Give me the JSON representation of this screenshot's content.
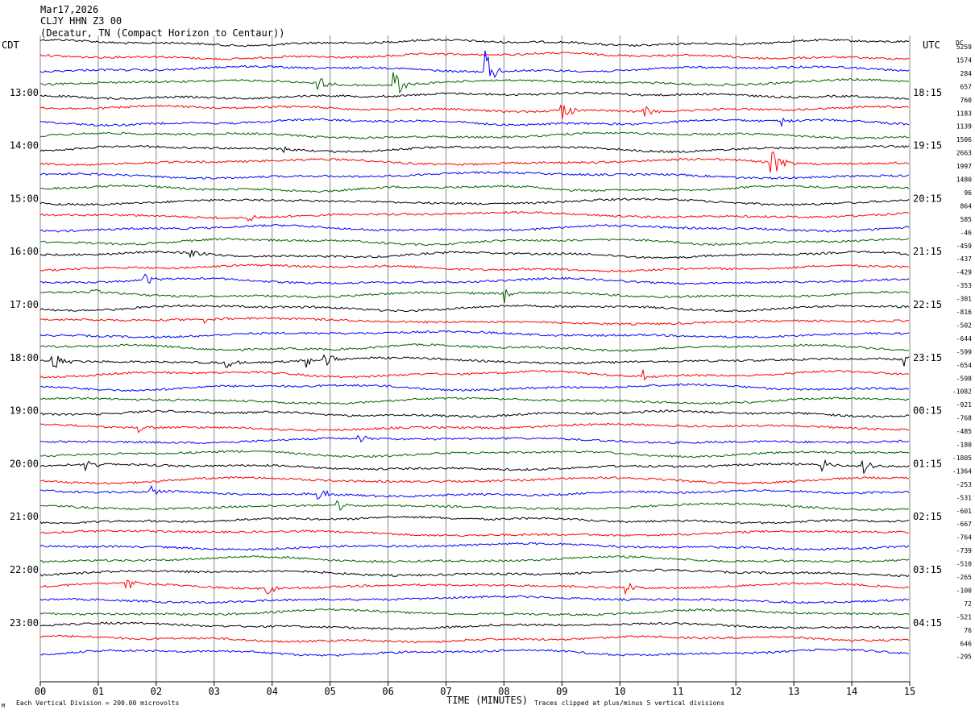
{
  "header": {
    "date": "Mar17,2026",
    "station": "CLJY HHN Z3 00",
    "location": "(Decatur, TN (Compact Horizon to Centaur))"
  },
  "labels": {
    "left_zone": "CDT",
    "right_zone": "UTC",
    "dc_header": "DC",
    "x_axis_title": "TIME (MINUTES)",
    "scale_note": "Each Vertical Division =  200.00 microvolts",
    "clip_note": "Traces clipped at plus/minus 5 vertical divisions"
  },
  "colors": {
    "trace_cycle": [
      "#000000",
      "#ff0000",
      "#0000ff",
      "#006400"
    ],
    "grid": "#888888"
  },
  "chart_data": {
    "type": "line",
    "subtype": "helicorder",
    "x_ticks": [
      "00",
      "01",
      "02",
      "03",
      "04",
      "05",
      "06",
      "07",
      "08",
      "09",
      "10",
      "11",
      "12",
      "13",
      "14",
      "15"
    ],
    "xlim": [
      0,
      15
    ],
    "local_hour_labels": [
      "13:00",
      "14:00",
      "15:00",
      "16:00",
      "17:00",
      "18:00",
      "19:00",
      "20:00",
      "21:00",
      "22:00",
      "23:00"
    ],
    "utc_hour_labels": [
      "18:15",
      "19:15",
      "20:15",
      "21:15",
      "22:15",
      "23:15",
      "00:15",
      "01:15",
      "02:15",
      "03:15",
      "04:15"
    ],
    "lines_per_hour": 4,
    "first_hour_label_row": 4,
    "dc_offsets": [
      5259,
      1574,
      284,
      657,
      760,
      1183,
      1139,
      1506,
      2663,
      1997,
      1480,
      96,
      864,
      585,
      -46,
      -459,
      -437,
      -429,
      -353,
      -301,
      -816,
      -502,
      -644,
      -599,
      -654,
      -598,
      -1082,
      -921,
      -768,
      -485,
      -180,
      -1805,
      -1364,
      -253,
      -531,
      -601,
      -667,
      -764,
      -739,
      -510,
      -265,
      -100,
      72,
      -521,
      76,
      646,
      -295
    ],
    "events": [
      {
        "row": 2,
        "minute": 7.7,
        "amp": 26
      },
      {
        "row": 3,
        "minute": 6.1,
        "amp": 20
      },
      {
        "row": 3,
        "minute": 4.8,
        "amp": 12
      },
      {
        "row": 5,
        "minute": 9.0,
        "amp": 18
      },
      {
        "row": 5,
        "minute": 10.4,
        "amp": 10
      },
      {
        "row": 6,
        "minute": 12.8,
        "amp": 8
      },
      {
        "row": 9,
        "minute": 12.6,
        "amp": 28
      },
      {
        "row": 8,
        "minute": 4.2,
        "amp": 6
      },
      {
        "row": 13,
        "minute": 3.6,
        "amp": 6
      },
      {
        "row": 16,
        "minute": 2.6,
        "amp": 8
      },
      {
        "row": 19,
        "minute": 8.0,
        "amp": 14
      },
      {
        "row": 19,
        "minute": 0.9,
        "amp": 8
      },
      {
        "row": 18,
        "minute": 1.8,
        "amp": 10
      },
      {
        "row": 21,
        "minute": 2.8,
        "amp": 6
      },
      {
        "row": 24,
        "minute": 0.2,
        "amp": 18
      },
      {
        "row": 24,
        "minute": 4.9,
        "amp": 12
      },
      {
        "row": 24,
        "minute": 3.2,
        "amp": 8
      },
      {
        "row": 24,
        "minute": 4.6,
        "amp": 8
      },
      {
        "row": 24,
        "minute": 14.9,
        "amp": 10
      },
      {
        "row": 25,
        "minute": 10.4,
        "amp": 8
      },
      {
        "row": 29,
        "minute": 1.7,
        "amp": 6
      },
      {
        "row": 30,
        "minute": 5.5,
        "amp": 6
      },
      {
        "row": 32,
        "minute": 0.8,
        "amp": 10
      },
      {
        "row": 32,
        "minute": 14.2,
        "amp": 10
      },
      {
        "row": 32,
        "minute": 13.5,
        "amp": 8
      },
      {
        "row": 34,
        "minute": 1.9,
        "amp": 9
      },
      {
        "row": 34,
        "minute": 4.8,
        "amp": 9
      },
      {
        "row": 35,
        "minute": 5.1,
        "amp": 10
      },
      {
        "row": 41,
        "minute": 1.5,
        "amp": 12
      },
      {
        "row": 41,
        "minute": 3.9,
        "amp": 8
      },
      {
        "row": 41,
        "minute": 10.1,
        "amp": 8
      }
    ]
  }
}
